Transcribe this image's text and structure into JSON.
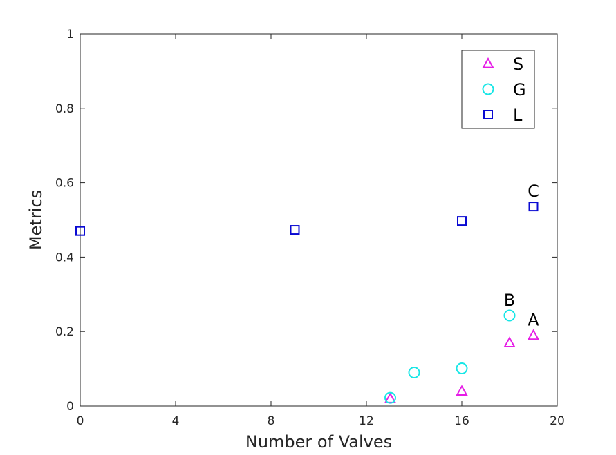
{
  "chart_data": {
    "type": "scatter",
    "title": "",
    "xlabel": "Number of Valves",
    "ylabel": "Metrics",
    "xlim": [
      0,
      20
    ],
    "ylim": [
      0,
      1
    ],
    "xticks": [
      0,
      4,
      8,
      12,
      16,
      20
    ],
    "yticks": [
      0,
      0.2,
      0.4,
      0.6,
      0.8,
      1
    ],
    "xtick_labels": [
      "0",
      "4",
      "8",
      "12",
      "16",
      "20"
    ],
    "ytick_labels": [
      "0",
      "0.2",
      "0.4",
      "0.6",
      "0.8",
      "1"
    ],
    "grid": false,
    "legend_position": "top-right",
    "series": [
      {
        "name": "S",
        "marker": "triangle",
        "color": "#e61ee6",
        "points": [
          {
            "x": 13,
            "y": 0.02
          },
          {
            "x": 16,
            "y": 0.04
          },
          {
            "x": 18,
            "y": 0.17
          },
          {
            "x": 19,
            "y": 0.19
          }
        ]
      },
      {
        "name": "G",
        "marker": "circle",
        "color": "#19e6e6",
        "points": [
          {
            "x": 13,
            "y": 0.022
          },
          {
            "x": 14,
            "y": 0.09
          },
          {
            "x": 16,
            "y": 0.101
          },
          {
            "x": 18,
            "y": 0.243
          }
        ]
      },
      {
        "name": "L",
        "marker": "square",
        "color": "#0a0ad2",
        "points": [
          {
            "x": 0,
            "y": 0.47
          },
          {
            "x": 9,
            "y": 0.473
          },
          {
            "x": 16,
            "y": 0.497
          },
          {
            "x": 19,
            "y": 0.536
          }
        ]
      }
    ],
    "annotations": [
      {
        "text": "A",
        "x": 19,
        "y": 0.19
      },
      {
        "text": "B",
        "x": 18,
        "y": 0.243
      },
      {
        "text": "C",
        "x": 19,
        "y": 0.536
      }
    ]
  }
}
